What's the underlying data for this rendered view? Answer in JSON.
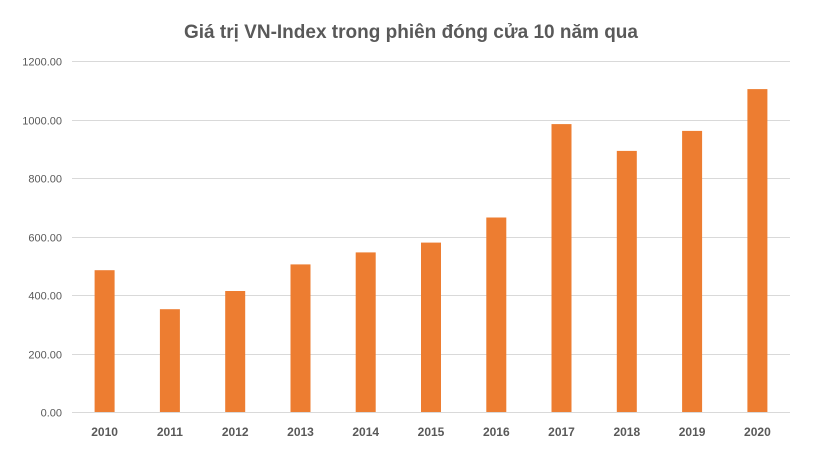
{
  "chart_data": {
    "type": "bar",
    "title": "Giá trị VN-Index trong phiên đóng cửa 10 năm qua",
    "xlabel": "",
    "ylabel": "",
    "categories": [
      "2010",
      "2011",
      "2012",
      "2013",
      "2014",
      "2015",
      "2016",
      "2017",
      "2018",
      "2019",
      "2020"
    ],
    "values": [
      484.66,
      351.55,
      413.73,
      504.63,
      545.63,
      579.03,
      664.87,
      984.24,
      892.54,
      960.99,
      1103.87
    ],
    "ylim": [
      0,
      1200
    ],
    "yticks": [
      0,
      200,
      400,
      600,
      800,
      1000,
      1200
    ],
    "ytick_labels": [
      "0.00",
      "200.00",
      "400.00",
      "600.00",
      "800.00",
      "1000.00",
      "1200.00"
    ],
    "grid": true,
    "legend": "none",
    "bar_color": "#ED7D31",
    "grid_color": "#D9D9D9",
    "label_color": "#595959"
  }
}
